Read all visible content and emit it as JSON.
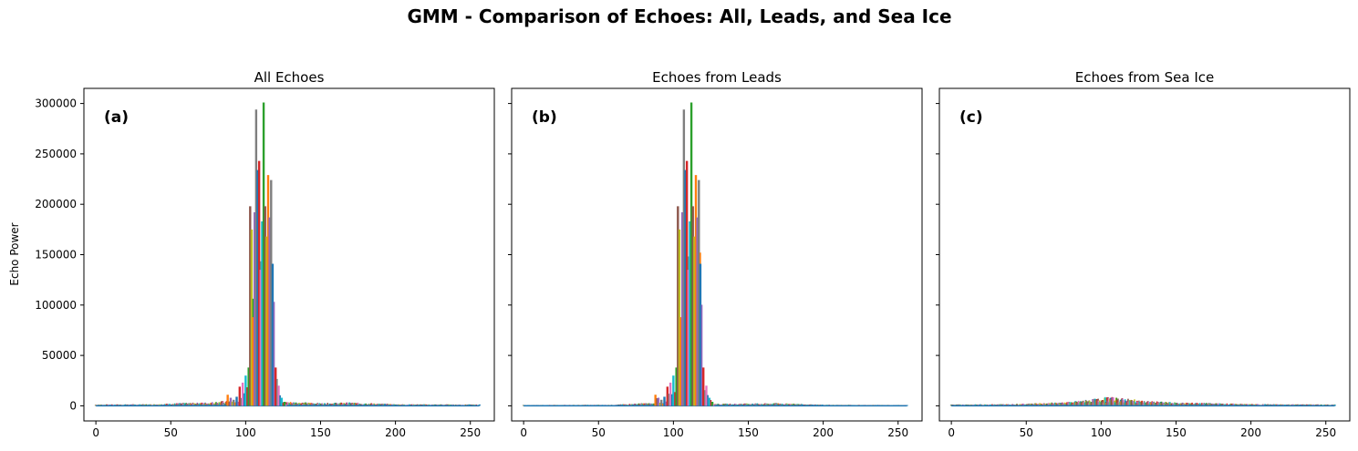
{
  "figure": {
    "title": "GMM - Comparison of Echoes: All, Leads, and Sea Ice",
    "ylabel": "Echo Power"
  },
  "chart_data": [
    {
      "type": "line",
      "title": "All Echoes",
      "panel_label": "(a)",
      "xlabel": "",
      "ylabel": "Echo Power",
      "xlim": [
        -8,
        266
      ],
      "ylim": [
        -15000,
        315000
      ],
      "xticks": [
        0,
        50,
        100,
        150,
        200,
        250
      ],
      "yticks": [
        0,
        50000,
        100000,
        150000,
        200000,
        250000,
        300000
      ],
      "grid": false,
      "series_description": "many overlapping echo waveforms (one line per echo, x = range bin 0..256)",
      "peaks": [
        {
          "x": 88,
          "y": 11000
        },
        {
          "x": 90,
          "y": 8000
        },
        {
          "x": 92,
          "y": 6000
        },
        {
          "x": 94,
          "y": 9000
        },
        {
          "x": 96,
          "y": 19000
        },
        {
          "x": 98,
          "y": 23000
        },
        {
          "x": 100,
          "y": 30000
        },
        {
          "x": 102,
          "y": 38000
        },
        {
          "x": 103,
          "y": 198000
        },
        {
          "x": 104,
          "y": 175000
        },
        {
          "x": 105,
          "y": 88000
        },
        {
          "x": 106,
          "y": 192000
        },
        {
          "x": 107,
          "y": 294000
        },
        {
          "x": 108,
          "y": 234000
        },
        {
          "x": 109,
          "y": 243000
        },
        {
          "x": 110,
          "y": 135000
        },
        {
          "x": 111,
          "y": 183000
        },
        {
          "x": 112,
          "y": 301000
        },
        {
          "x": 113,
          "y": 198000
        },
        {
          "x": 114,
          "y": 168000
        },
        {
          "x": 115,
          "y": 229000
        },
        {
          "x": 116,
          "y": 187000
        },
        {
          "x": 117,
          "y": 224000
        },
        {
          "x": 118,
          "y": 141000
        },
        {
          "x": 120,
          "y": 38000
        },
        {
          "x": 122,
          "y": 20000
        },
        {
          "x": 124,
          "y": 8000
        },
        {
          "x": 126,
          "y": 4000
        }
      ],
      "baseline": [
        {
          "x": 0,
          "y": 1000
        },
        {
          "x": 40,
          "y": 1200
        },
        {
          "x": 55,
          "y": 2000
        },
        {
          "x": 75,
          "y": 2500
        },
        {
          "x": 85,
          "y": 3500
        },
        {
          "x": 130,
          "y": 3000
        },
        {
          "x": 150,
          "y": 2000
        },
        {
          "x": 170,
          "y": 2500
        },
        {
          "x": 200,
          "y": 1200
        },
        {
          "x": 256,
          "y": 1000
        }
      ]
    },
    {
      "type": "line",
      "title": "Echoes from Leads",
      "panel_label": "(b)",
      "xlabel": "",
      "ylabel": "",
      "xlim": [
        -8,
        266
      ],
      "ylim": [
        -15000,
        315000
      ],
      "xticks": [
        0,
        50,
        100,
        150,
        200,
        250
      ],
      "yticks": [
        0,
        50000,
        100000,
        150000,
        200000,
        250000,
        300000
      ],
      "grid": false,
      "series_description": "overlapping echo waveforms classified as leads",
      "peaks": [
        {
          "x": 88,
          "y": 11000
        },
        {
          "x": 90,
          "y": 8000
        },
        {
          "x": 92,
          "y": 6000
        },
        {
          "x": 94,
          "y": 9000
        },
        {
          "x": 96,
          "y": 19000
        },
        {
          "x": 98,
          "y": 23000
        },
        {
          "x": 100,
          "y": 30000
        },
        {
          "x": 102,
          "y": 38000
        },
        {
          "x": 103,
          "y": 198000
        },
        {
          "x": 104,
          "y": 175000
        },
        {
          "x": 105,
          "y": 88000
        },
        {
          "x": 106,
          "y": 192000
        },
        {
          "x": 107,
          "y": 294000
        },
        {
          "x": 108,
          "y": 234000
        },
        {
          "x": 109,
          "y": 243000
        },
        {
          "x": 110,
          "y": 135000
        },
        {
          "x": 111,
          "y": 183000
        },
        {
          "x": 112,
          "y": 301000
        },
        {
          "x": 113,
          "y": 198000
        },
        {
          "x": 114,
          "y": 168000
        },
        {
          "x": 115,
          "y": 229000
        },
        {
          "x": 116,
          "y": 187000
        },
        {
          "x": 117,
          "y": 224000
        },
        {
          "x": 118,
          "y": 141000
        },
        {
          "x": 120,
          "y": 38000
        },
        {
          "x": 122,
          "y": 20000
        },
        {
          "x": 124,
          "y": 8000
        },
        {
          "x": 126,
          "y": 4000
        }
      ],
      "baseline": [
        {
          "x": 0,
          "y": 600
        },
        {
          "x": 60,
          "y": 800
        },
        {
          "x": 80,
          "y": 2000
        },
        {
          "x": 130,
          "y": 1500
        },
        {
          "x": 170,
          "y": 2000
        },
        {
          "x": 200,
          "y": 800
        },
        {
          "x": 256,
          "y": 600
        }
      ]
    },
    {
      "type": "line",
      "title": "Echoes from Sea Ice",
      "panel_label": "(c)",
      "xlabel": "",
      "ylabel": "",
      "xlim": [
        -8,
        266
      ],
      "ylim": [
        -15000,
        315000
      ],
      "xticks": [
        0,
        50,
        100,
        150,
        200,
        250
      ],
      "yticks": [
        0,
        50000,
        100000,
        150000,
        200000,
        250000,
        300000
      ],
      "grid": false,
      "series_description": "overlapping echo waveforms classified as sea ice (low, broad returns)",
      "peaks": [],
      "baseline": [
        {
          "x": 0,
          "y": 1000
        },
        {
          "x": 40,
          "y": 1300
        },
        {
          "x": 60,
          "y": 2000
        },
        {
          "x": 80,
          "y": 3000
        },
        {
          "x": 95,
          "y": 5000
        },
        {
          "x": 105,
          "y": 6500
        },
        {
          "x": 115,
          "y": 5500
        },
        {
          "x": 130,
          "y": 3500
        },
        {
          "x": 150,
          "y": 2500
        },
        {
          "x": 175,
          "y": 2000
        },
        {
          "x": 200,
          "y": 1300
        },
        {
          "x": 256,
          "y": 1000
        }
      ]
    }
  ],
  "colors": {
    "cycle": [
      "#1f77b4",
      "#ff7f0e",
      "#2ca02c",
      "#d62728",
      "#9467bd",
      "#8c564b",
      "#e377c2",
      "#7f7f7f",
      "#bcbd22",
      "#17becf"
    ],
    "axis": "#000000",
    "background": "#ffffff"
  }
}
